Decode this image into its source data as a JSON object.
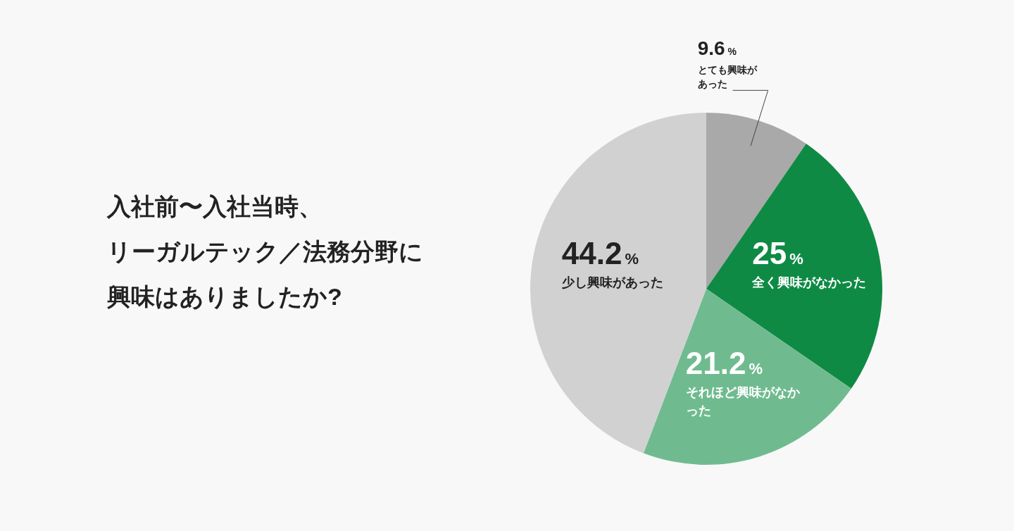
{
  "chart_data": {
    "type": "pie",
    "title": "入社前〜入社当時、リーガルテック／法務分野に興味はありましたか?",
    "categories": [
      "とても興味があった",
      "全く興味がなかった",
      "それほど興味がなかった",
      "少し興味があった"
    ],
    "value_labels": [
      "9.6%",
      "25%",
      "21.2%",
      "44.2%"
    ],
    "values": [
      9.6,
      25,
      21.2,
      44.2
    ],
    "colors": [
      "#a9a9a9",
      "#0f8a45",
      "#6fbb8f",
      "#d1d1d1"
    ],
    "data_labels": true
  }
}
